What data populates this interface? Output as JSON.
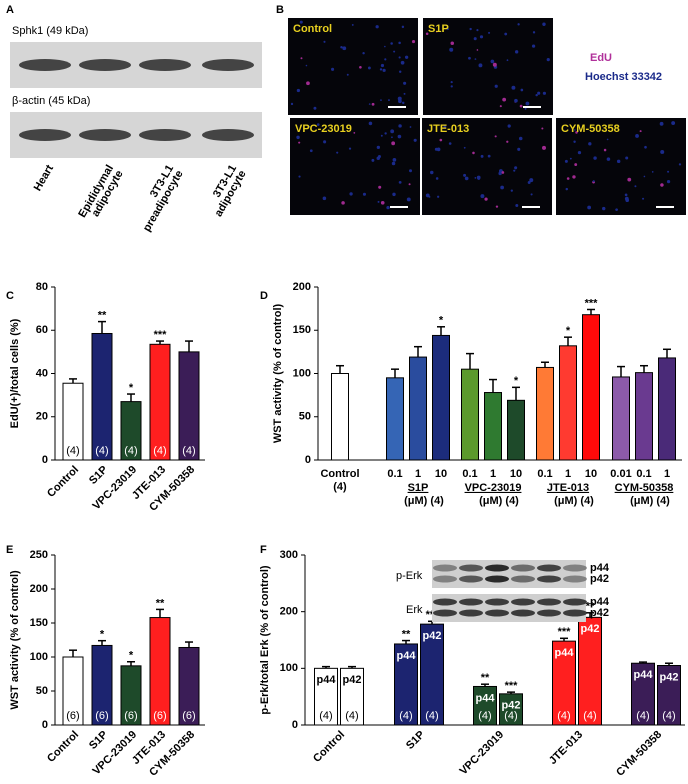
{
  "panel_a": {
    "label": "A",
    "blots": [
      {
        "label": "Sphk1 (49 kDa)"
      },
      {
        "label": "β-actin (45 kDa)"
      }
    ],
    "lanes": [
      [
        "Heart"
      ],
      [
        "Epididymal",
        "adipocyte"
      ],
      [
        "3T3-L1",
        "preadipocyte"
      ],
      [
        "3T3-L1",
        "adipocyte"
      ]
    ]
  },
  "panel_b": {
    "label": "B",
    "images": [
      "Control",
      "S1P",
      "VPC-23019",
      "JTE-013",
      "CYM-50358"
    ],
    "legend": [
      {
        "name": "EdU",
        "color": "#b0309a"
      },
      {
        "name": "Hoechst 33342",
        "color": "#1a2a8a"
      }
    ]
  },
  "chart_data": [
    {
      "type": "bar",
      "panel": "C",
      "ylabel": "EdU(+)/total cells (%)",
      "categories": [
        "Control",
        "S1P",
        "VPC-23019",
        "JTE-013",
        "CYM-50358"
      ],
      "values": [
        35.5,
        58.5,
        27,
        53.5,
        50
      ],
      "errors": [
        2,
        5.5,
        3.5,
        1.5,
        5
      ],
      "colors": [
        "#ffffff",
        "#1c2470",
        "#1e4a2a",
        "#ff1f1f",
        "#3b1d57"
      ],
      "significance": [
        null,
        "**",
        "*",
        "***",
        null
      ],
      "n_labels": [
        "(4)",
        "(4)",
        "(4)",
        "(4)",
        "(4)"
      ],
      "ylim": [
        0,
        80
      ],
      "yticks": [
        0,
        20,
        40,
        60,
        80
      ]
    },
    {
      "type": "grouped-bar",
      "panel": "D",
      "ylabel": "WST activity (% of control)",
      "ylim": [
        0,
        200
      ],
      "yticks": [
        0,
        50,
        100,
        150,
        200
      ],
      "groups": [
        {
          "name": "Control",
          "note": "(4)",
          "doses": [
            null
          ],
          "values": [
            100
          ],
          "errors": [
            9
          ],
          "colors": [
            "#ffffff"
          ],
          "significance": [
            null
          ]
        },
        {
          "name": "S1P",
          "note": "(μM) (4)",
          "doses": [
            "0.1",
            "1",
            "10"
          ],
          "values": [
            95,
            119,
            144
          ],
          "errors": [
            10,
            12,
            10
          ],
          "colors": [
            "#3565b5",
            "#2a4c9e",
            "#1c2c7c"
          ],
          "significance": [
            null,
            null,
            "*"
          ]
        },
        {
          "name": "VPC-23019",
          "note": "(μM) (4)",
          "doses": [
            "0.1",
            "1",
            "10"
          ],
          "values": [
            105,
            78,
            69
          ],
          "errors": [
            18,
            15,
            15
          ],
          "colors": [
            "#5c9a2c",
            "#2f7a30",
            "#1e4a2a"
          ],
          "significance": [
            null,
            null,
            "*"
          ]
        },
        {
          "name": "JTE-013",
          "note": "(μM) (4)",
          "doses": [
            "0.1",
            "1",
            "10"
          ],
          "values": [
            107,
            132,
            168
          ],
          "errors": [
            6,
            10,
            6
          ],
          "colors": [
            "#ff7a35",
            "#ff3a30",
            "#ff0a0a"
          ],
          "significance": [
            null,
            "*",
            "***"
          ]
        },
        {
          "name": "CYM-50358",
          "note": "(μM) (4)",
          "doses": [
            "0.01",
            "0.1",
            "1"
          ],
          "values": [
            96,
            101,
            118
          ],
          "errors": [
            12,
            8,
            10
          ],
          "colors": [
            "#8c5aaa",
            "#6a3a90",
            "#4a2a78"
          ],
          "significance": [
            null,
            null,
            null
          ]
        }
      ]
    },
    {
      "type": "bar",
      "panel": "E",
      "ylabel": "WST activity (% of control)",
      "categories": [
        "Control",
        "S1P",
        "VPC-23019",
        "JTE-013",
        "CYM-50358"
      ],
      "values": [
        100,
        117,
        87,
        158,
        114
      ],
      "errors": [
        10,
        7,
        6,
        12,
        8
      ],
      "colors": [
        "#ffffff",
        "#1c2470",
        "#1e4a2a",
        "#ff1f1f",
        "#3b1d57"
      ],
      "significance": [
        null,
        "*",
        "*",
        "**",
        null
      ],
      "n_labels": [
        "(6)",
        "(6)",
        "(6)",
        "(6)",
        "(6)"
      ],
      "ylim": [
        0,
        250
      ],
      "yticks": [
        0,
        50,
        100,
        150,
        200,
        250
      ]
    },
    {
      "type": "paired-bar",
      "panel": "F",
      "ylabel": "p-Erk/total Erk (% of control)",
      "ylim": [
        0,
        300
      ],
      "yticks": [
        0,
        100,
        200,
        300
      ],
      "bar_labels": [
        "p44",
        "p42"
      ],
      "blots": [
        {
          "label": "p-Erk",
          "bands": [
            "p44",
            "p42"
          ]
        },
        {
          "label": "Erk",
          "bands": [
            "p44",
            "p42"
          ]
        }
      ],
      "groups": [
        {
          "name": "Control",
          "color": "#ffffff",
          "values": [
            100,
            100
          ],
          "errors": [
            3,
            3
          ],
          "significance": [
            null,
            null
          ],
          "n_labels": [
            "(4)",
            "(4)"
          ]
        },
        {
          "name": "S1P",
          "color": "#1c2470",
          "values": [
            143,
            178
          ],
          "errors": [
            6,
            5
          ],
          "significance": [
            "**",
            "***"
          ],
          "n_labels": [
            "(4)",
            "(4)"
          ]
        },
        {
          "name": "VPC-23019",
          "color": "#1e4a2a",
          "values": [
            68,
            55
          ],
          "errors": [
            4,
            3
          ],
          "significance": [
            "**",
            "***"
          ],
          "n_labels": [
            "(4)",
            "(4)"
          ]
        },
        {
          "name": "JTE-013",
          "color": "#ff1f1f",
          "values": [
            148,
            190
          ],
          "errors": [
            5,
            8
          ],
          "significance": [
            "***",
            "**"
          ],
          "n_labels": [
            "(4)",
            "(4)"
          ]
        },
        {
          "name": "CYM-50358",
          "color": "#3b1d57",
          "values": [
            109,
            105
          ],
          "errors": [
            2,
            4
          ],
          "significance": [
            null,
            null
          ],
          "n_labels": [
            "(4)",
            "(4)"
          ]
        }
      ]
    }
  ]
}
